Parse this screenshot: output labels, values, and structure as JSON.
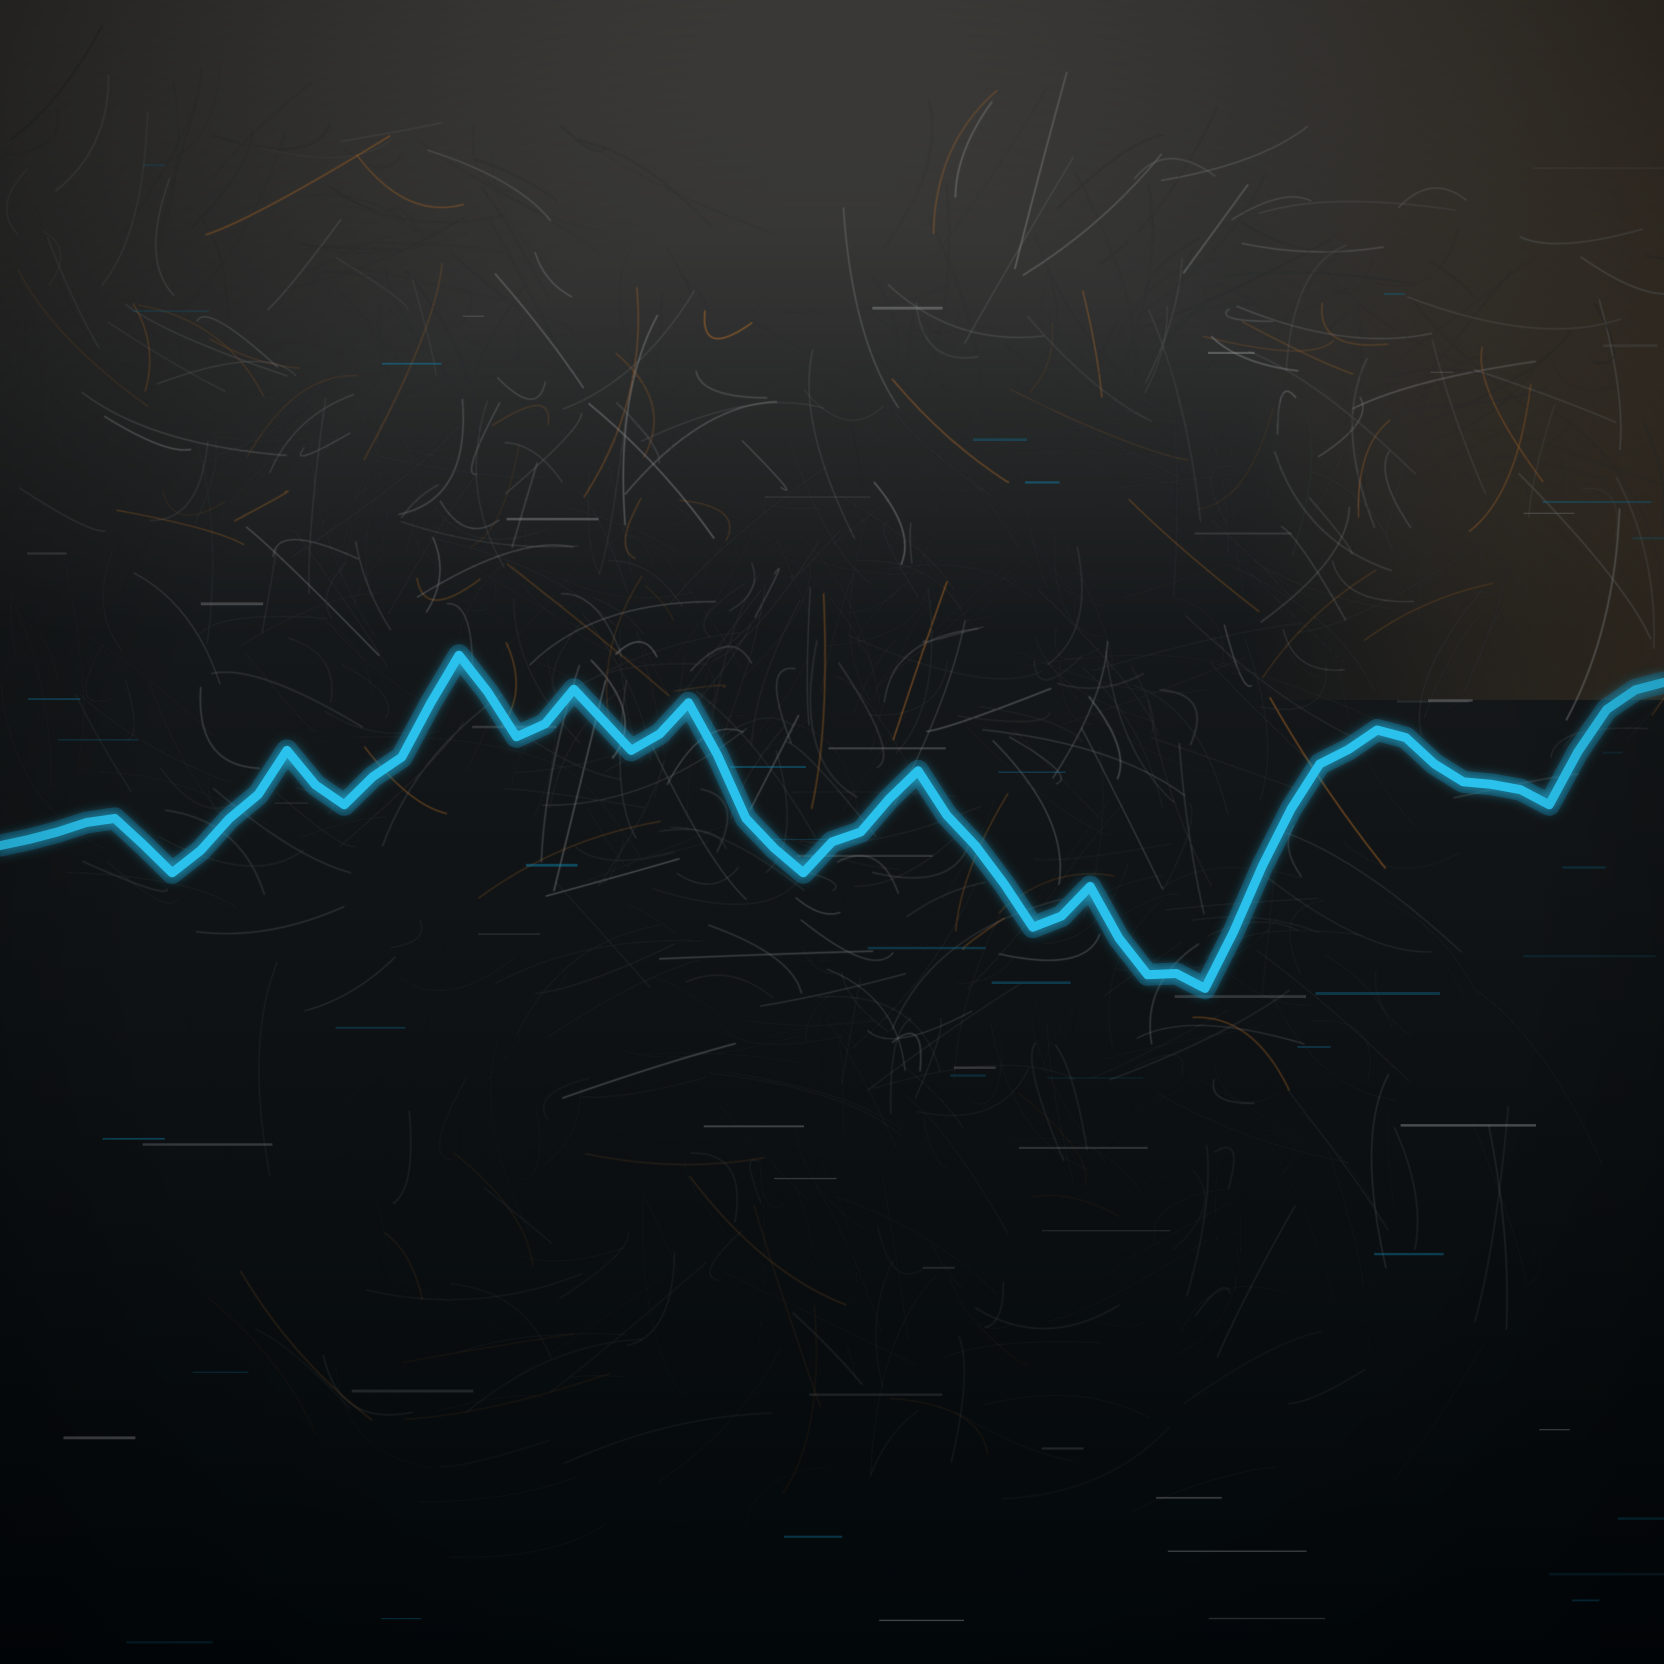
{
  "scene": {
    "kind": "abstract photograph",
    "colors": {
      "background_top": "#4a4845",
      "background_mid": "#15181a",
      "background_bottom": "#02070a",
      "fiber_dark": "#2c2e30",
      "fiber_light": "#8d8f91",
      "fiber_amber": "#c9772a",
      "line": "#29c1ec",
      "line_glow": "#0e7fa8"
    },
    "line_trend": [
      0.58,
      0.6,
      0.62,
      0.54,
      0.62,
      0.72,
      0.64,
      0.71,
      0.86,
      0.74,
      0.81,
      0.72,
      0.79,
      0.62,
      0.54,
      0.6,
      0.69,
      0.58,
      0.46,
      0.52,
      0.39,
      0.37,
      0.55,
      0.7,
      0.75,
      0.7,
      0.67,
      0.64,
      0.78,
      0.82
    ]
  }
}
